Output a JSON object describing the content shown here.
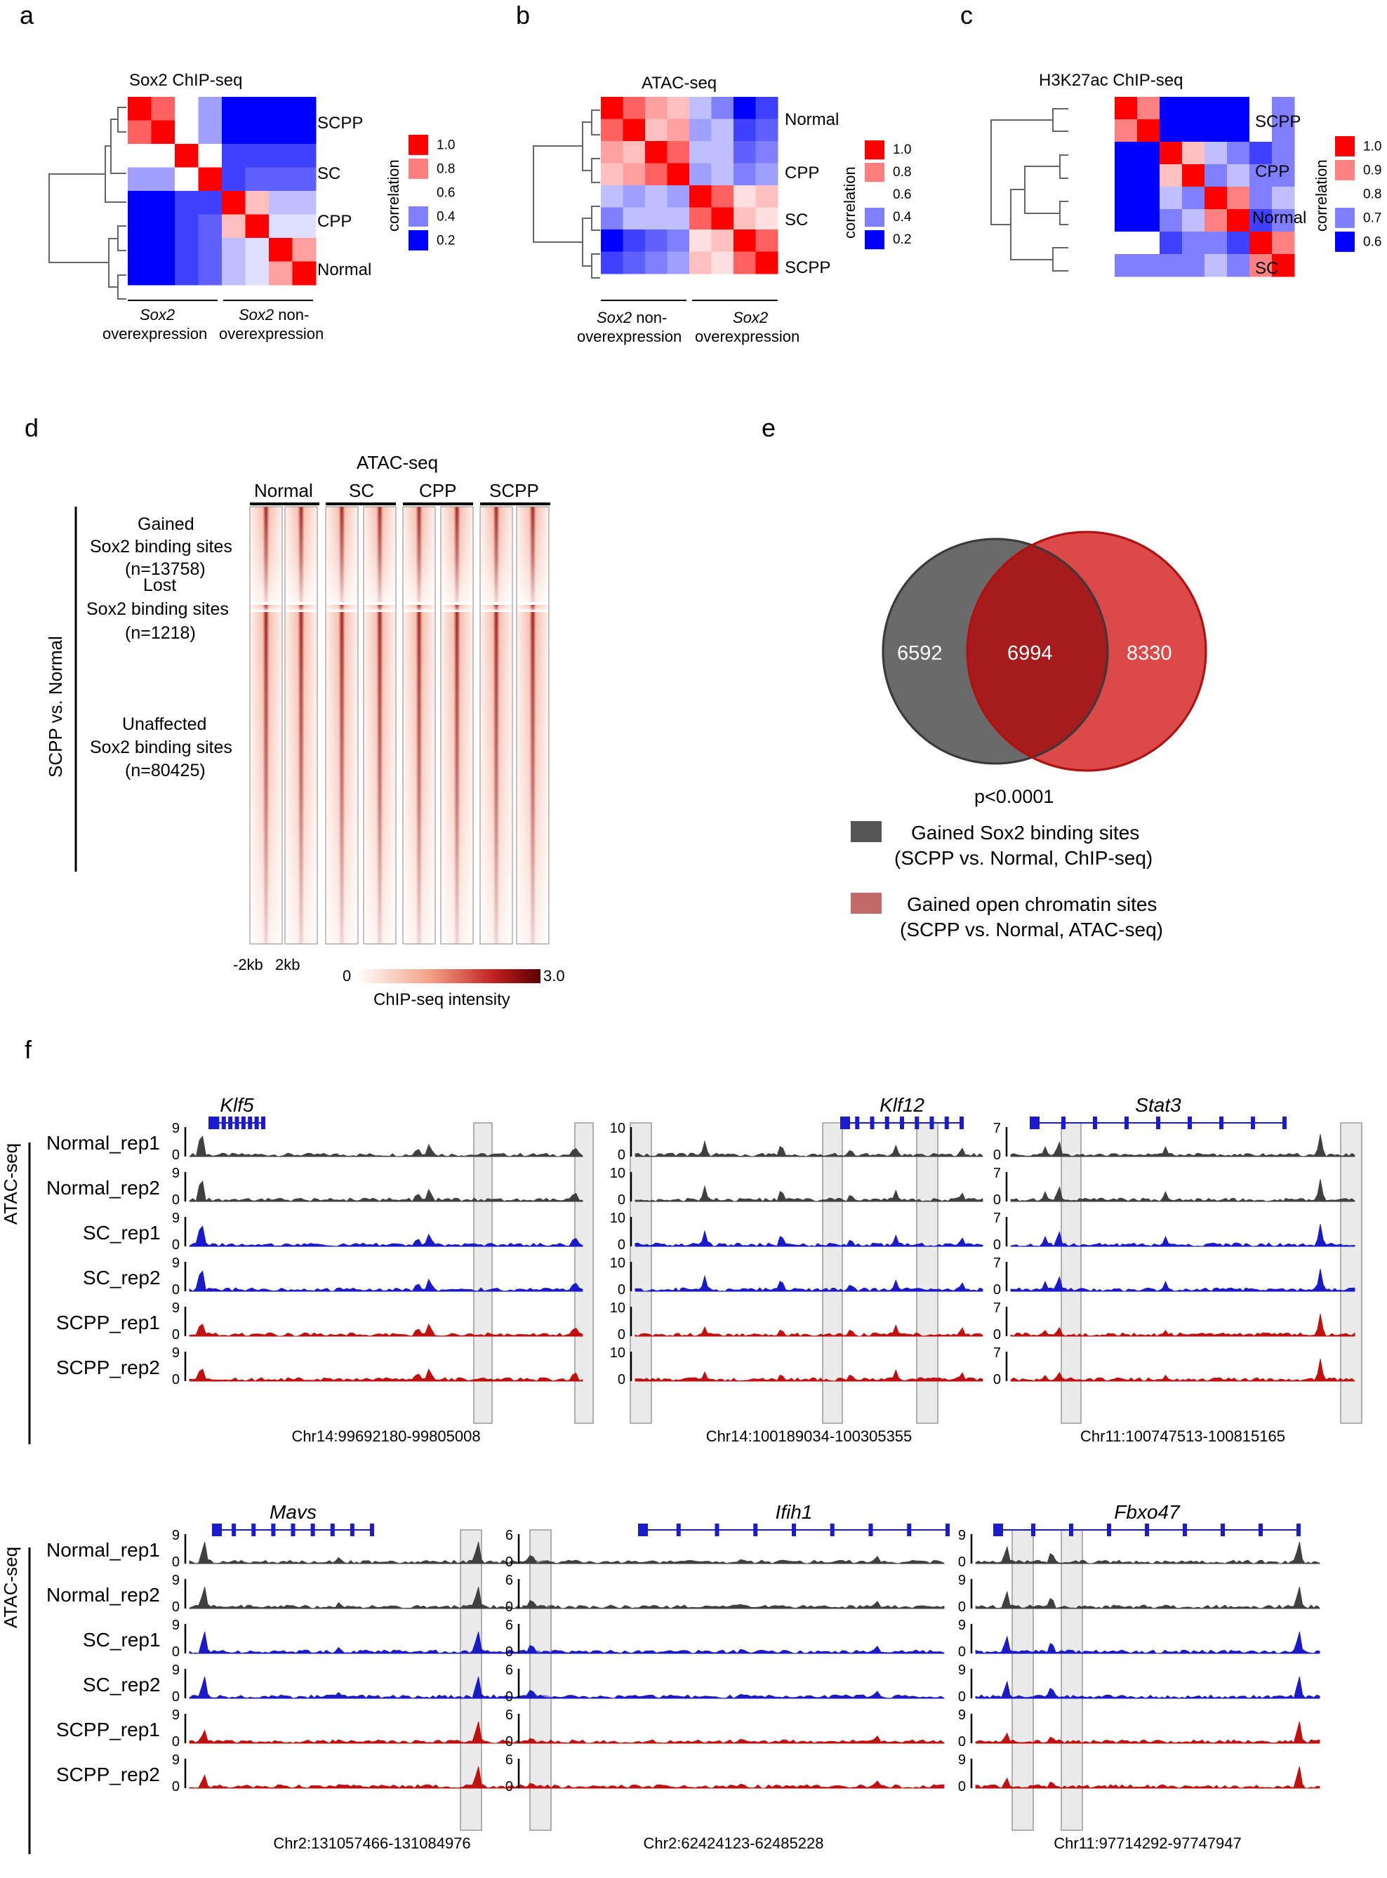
{
  "panels": {
    "a": {
      "letter": "a",
      "title": "Sox2 ChIP-seq",
      "rows": [
        "SCPP",
        "SC",
        "CPP",
        "Normal"
      ],
      "legend": {
        "ticks": [
          "1.0",
          "0.8",
          "0.6",
          "0.4",
          "0.2"
        ],
        "label": "correlation"
      },
      "groups": [
        {
          "italic": "Sox2",
          "rest": "",
          "line2": "overexpression"
        },
        {
          "italic": "Sox2",
          "rest": " non-",
          "line2": "overexpression"
        }
      ],
      "matrix": [
        [
          1,
          0.85,
          0.6,
          0.45,
          0.2,
          0.2,
          0.2,
          0.2
        ],
        [
          0.85,
          1,
          0.6,
          0.45,
          0.2,
          0.2,
          0.2,
          0.2
        ],
        [
          0.6,
          0.6,
          1,
          0.6,
          0.3,
          0.3,
          0.3,
          0.3
        ],
        [
          0.45,
          0.45,
          0.6,
          1,
          0.3,
          0.35,
          0.35,
          0.35
        ],
        [
          0.2,
          0.2,
          0.3,
          0.3,
          1,
          0.7,
          0.5,
          0.5
        ],
        [
          0.2,
          0.2,
          0.3,
          0.35,
          0.7,
          1,
          0.55,
          0.55
        ],
        [
          0.2,
          0.2,
          0.3,
          0.35,
          0.5,
          0.55,
          1,
          0.75
        ],
        [
          0.2,
          0.2,
          0.3,
          0.35,
          0.5,
          0.55,
          0.75,
          1
        ]
      ]
    },
    "b": {
      "letter": "b",
      "title": "ATAC-seq",
      "rows": [
        "Normal",
        "CPP",
        "SC",
        "SCPP"
      ],
      "legend": {
        "ticks": [
          "1.0",
          "0.8",
          "0.6",
          "0.4",
          "0.2"
        ],
        "label": "correlation"
      },
      "groups": [
        {
          "italic": "Sox2",
          "rest": " non-",
          "line2": "overexpression"
        },
        {
          "italic": "Sox2",
          "rest": "",
          "line2": "overexpression"
        }
      ],
      "matrix": [
        [
          1,
          0.85,
          0.75,
          0.7,
          0.5,
          0.4,
          0.2,
          0.3
        ],
        [
          0.85,
          1,
          0.7,
          0.75,
          0.45,
          0.5,
          0.3,
          0.35
        ],
        [
          0.75,
          0.7,
          1,
          0.85,
          0.5,
          0.5,
          0.35,
          0.4
        ],
        [
          0.7,
          0.75,
          0.85,
          1,
          0.45,
          0.5,
          0.4,
          0.45
        ],
        [
          0.5,
          0.45,
          0.5,
          0.45,
          1,
          0.85,
          0.65,
          0.7
        ],
        [
          0.4,
          0.5,
          0.5,
          0.5,
          0.85,
          1,
          0.7,
          0.65
        ],
        [
          0.2,
          0.3,
          0.35,
          0.4,
          0.65,
          0.7,
          1,
          0.85
        ],
        [
          0.3,
          0.35,
          0.4,
          0.45,
          0.7,
          0.65,
          0.85,
          1
        ]
      ]
    },
    "c": {
      "letter": "c",
      "title": "H3K27ac ChIP-seq",
      "rows": [
        "SCPP",
        "CPP",
        "Normal",
        "SC"
      ],
      "legend": {
        "ticks": [
          "1.0",
          "0.9",
          "0.8",
          "0.7",
          "0.6"
        ],
        "label": "correlation"
      },
      "matrix": [
        [
          1,
          0.9,
          0.6,
          0.6,
          0.6,
          0.6,
          0.8,
          0.7
        ],
        [
          0.9,
          1,
          0.6,
          0.6,
          0.6,
          0.6,
          0.8,
          0.7
        ],
        [
          0.6,
          0.6,
          1,
          0.85,
          0.75,
          0.7,
          0.65,
          0.7
        ],
        [
          0.6,
          0.6,
          0.85,
          1,
          0.7,
          0.75,
          0.7,
          0.7
        ],
        [
          0.6,
          0.6,
          0.75,
          0.7,
          1,
          0.9,
          0.7,
          0.75
        ],
        [
          0.6,
          0.6,
          0.7,
          0.75,
          0.9,
          1,
          0.65,
          0.7
        ],
        [
          0.8,
          0.8,
          0.65,
          0.7,
          0.7,
          0.65,
          1,
          0.9
        ],
        [
          0.7,
          0.7,
          0.7,
          0.7,
          0.75,
          0.7,
          0.9,
          1
        ]
      ]
    },
    "d": {
      "letter": "d",
      "title": "ATAC-seq",
      "columns": [
        "Normal",
        "SC",
        "CPP",
        "SCPP"
      ],
      "side_label": "SCPP vs. Normal",
      "blocks": [
        {
          "l1": "Gained",
          "l2": "Sox2 binding sites",
          "l3": "(n=13758)"
        },
        {
          "l1": "Lost",
          "l2": "Sox2 binding sites",
          "l3": "(n=1218)"
        },
        {
          "l1": "Unaffected",
          "l2": "Sox2 binding sites",
          "l3": "(n=80425)"
        }
      ],
      "axis": {
        "left": "-2kb",
        "right": "2kb"
      },
      "colorbar": {
        "min": "0",
        "max": "3.0",
        "label": "ChIP-seq intensity"
      }
    },
    "e": {
      "letter": "e",
      "left_only": "6592",
      "overlap": "6994",
      "right_only": "8330",
      "pvalue": "p<0.0001",
      "legend": [
        {
          "l1": "Gained Sox2 binding sites",
          "l2": "(SCPP vs. Normal, ChIP-seq)",
          "color": "#555555"
        },
        {
          "l1": "Gained open chromatin sites",
          "l2": "(SCPP vs. Normal, ATAC-seq)",
          "color": "#c06a6a"
        }
      ]
    },
    "f": {
      "letter": "f",
      "assay_label": "ATAC-seq",
      "tracks": [
        "Normal_rep1",
        "Normal_rep2",
        "SC_rep1",
        "SC_rep2",
        "SCPP_rep1",
        "SCPP_rep2"
      ],
      "colors": {
        "Normal": "#404040",
        "SC": "#1a1ac8",
        "SCPP": "#c01010",
        "gene": "#1a1ad0",
        "highlight": "#d8d8d8"
      },
      "loci": [
        {
          "gene": "Klf5",
          "ymax": "9",
          "coord": "Chr14:99692180-99805008"
        },
        {
          "gene": "Klf12",
          "ymax": "10",
          "coord": "Chr14:100189034-100305355"
        },
        {
          "gene": "Stat3",
          "ymax": "7",
          "coord": "Chr11:100747513-100815165"
        },
        {
          "gene": "Mavs",
          "ymax": "9",
          "coord": "Chr2:131057466-131084976"
        },
        {
          "gene": "Ifih1",
          "ymax": "6",
          "coord": "Chr2:62424123-62485228"
        },
        {
          "gene": "Fbxo47",
          "ymax": "9",
          "coord": "Chr11:97714292-97747947"
        }
      ]
    }
  }
}
